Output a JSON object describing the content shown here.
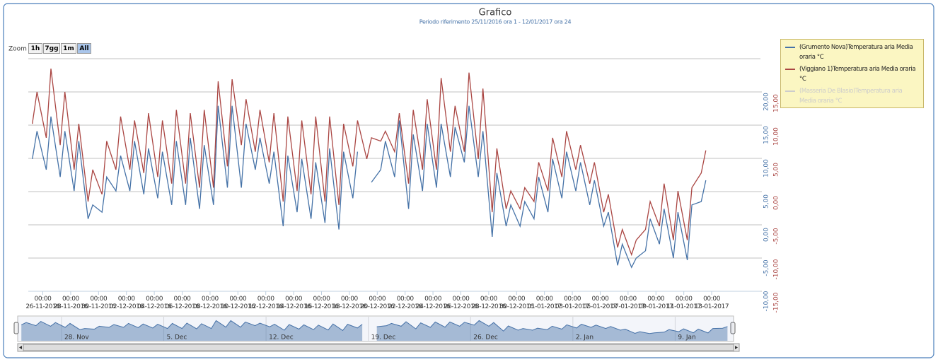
{
  "chart_data": {
    "type": "line",
    "title": "Grafico",
    "subtitle": "Periodo riferimento 25/11/2016 ora 1 - 12/01/2017 ora 24",
    "zoom": {
      "label": "Zoom",
      "buttons": [
        "1h",
        "7gg",
        "1m",
        "All"
      ],
      "selected": 3
    },
    "x": [
      "2016-11-25 06:00",
      "2016-11-25 14:00",
      "2016-11-26 06:00",
      "2016-11-26 14:00",
      "2016-11-27 06:00",
      "2016-11-27 14:00",
      "2016-11-28 06:00",
      "2016-11-28 14:00",
      "2016-11-29 06:00",
      "2016-11-29 14:00",
      "2016-11-30 06:00",
      "2016-11-30 14:00",
      "2016-12-01 06:00",
      "2016-12-01 14:00",
      "2016-12-02 06:00",
      "2016-12-02 14:00",
      "2016-12-03 06:00",
      "2016-12-03 14:00",
      "2016-12-04 06:00",
      "2016-12-04 14:00",
      "2016-12-05 06:00",
      "2016-12-05 14:00",
      "2016-12-06 06:00",
      "2016-12-06 14:00",
      "2016-12-07 06:00",
      "2016-12-07 14:00",
      "2016-12-08 06:00",
      "2016-12-08 14:00",
      "2016-12-09 06:00",
      "2016-12-09 14:00",
      "2016-12-10 06:00",
      "2016-12-10 14:00",
      "2016-12-11 06:00",
      "2016-12-11 14:00",
      "2016-12-12 06:00",
      "2016-12-12 14:00",
      "2016-12-13 06:00",
      "2016-12-13 14:00",
      "2016-12-14 06:00",
      "2016-12-14 14:00",
      "2016-12-15 06:00",
      "2016-12-15 14:00",
      "2016-12-16 06:00",
      "2016-12-16 14:00",
      "2016-12-17 06:00",
      "2016-12-17 14:00",
      "2016-12-18 06:00",
      "2016-12-18 14:00",
      "2016-12-19 06:00",
      "2016-12-19 14:00",
      "2016-12-20 06:00",
      "2016-12-20 14:00",
      "2016-12-21 06:00",
      "2016-12-21 14:00",
      "2016-12-22 06:00",
      "2016-12-22 14:00",
      "2016-12-23 06:00",
      "2016-12-23 14:00",
      "2016-12-24 06:00",
      "2016-12-24 14:00",
      "2016-12-25 06:00",
      "2016-12-25 14:00",
      "2016-12-26 06:00",
      "2016-12-26 14:00",
      "2016-12-27 06:00",
      "2016-12-27 14:00",
      "2016-12-28 06:00",
      "2016-12-28 14:00",
      "2016-12-29 06:00",
      "2016-12-29 14:00",
      "2016-12-30 06:00",
      "2016-12-30 14:00",
      "2016-12-31 06:00",
      "2016-12-31 14:00",
      "2017-01-01 06:00",
      "2017-01-01 14:00",
      "2017-01-02 06:00",
      "2017-01-02 14:00",
      "2017-01-03 06:00",
      "2017-01-03 14:00",
      "2017-01-04 06:00",
      "2017-01-04 14:00",
      "2017-01-05 06:00",
      "2017-01-05 14:00",
      "2017-01-06 06:00",
      "2017-01-06 14:00",
      "2017-01-07 06:00",
      "2017-01-07 14:00",
      "2017-01-08 06:00",
      "2017-01-08 14:00",
      "2017-01-09 06:00",
      "2017-01-09 14:00",
      "2017-01-10 06:00",
      "2017-01-10 14:00",
      "2017-01-11 06:00",
      "2017-01-11 14:00",
      "2017-01-12 06:00",
      "2017-01-12 14:00"
    ],
    "series": [
      {
        "name": "(Grumento Nova)Temperatura aria Media oraria °C",
        "color": "#4572a7",
        "axis": "y",
        "values": [
          9.9,
          14.1,
          8.3,
          16.3,
          7.2,
          14.1,
          5.1,
          12.6,
          0.9,
          3.0,
          1.9,
          7.2,
          5.1,
          10.4,
          5.1,
          12.6,
          4.6,
          11.5,
          4.0,
          11.0,
          3.0,
          12.6,
          3.0,
          13.1,
          2.4,
          12.0,
          3.0,
          17.9,
          5.6,
          17.9,
          5.6,
          15.2,
          8.3,
          13.1,
          6.2,
          11.0,
          -0.2,
          10.4,
          1.9,
          9.9,
          0.9,
          9.4,
          0.3,
          11.5,
          -0.7,
          11.0,
          4.0,
          11.0,
          null,
          6.4,
          8.3,
          12.6,
          7.2,
          15.7,
          2.4,
          13.6,
          5.1,
          15.2,
          5.6,
          15.2,
          7.2,
          14.7,
          9.4,
          17.9,
          7.2,
          14.1,
          -1.8,
          7.8,
          -0.2,
          3.0,
          -0.2,
          3.5,
          0.9,
          7.2,
          1.9,
          9.9,
          4.0,
          11.0,
          5.1,
          9.4,
          3.0,
          6.7,
          -0.2,
          1.9,
          -6.1,
          -2.9,
          -6.4,
          -5.0,
          -3.9,
          0.9,
          -2.9,
          2.4,
          -5.0,
          1.9,
          -5.3,
          3.0,
          3.5,
          6.7
        ]
      },
      {
        "name": "(Viggiano 1)Temperatura aria Media oraria °C",
        "color": "#aa4643",
        "axis": "y2",
        "values": [
          10.2,
          15.0,
          8.1,
          18.5,
          7.0,
          15.0,
          3.3,
          10.2,
          -1.5,
          3.3,
          -0.4,
          7.6,
          3.3,
          11.3,
          3.3,
          10.7,
          2.8,
          11.8,
          2.2,
          10.7,
          1.2,
          12.3,
          1.2,
          11.8,
          0.6,
          12.3,
          0.6,
          16.6,
          3.8,
          16.9,
          7.0,
          13.9,
          6.0,
          12.3,
          4.4,
          11.8,
          -1.5,
          11.3,
          0.1,
          10.7,
          -0.4,
          11.3,
          -1.5,
          11.3,
          -2.0,
          10.2,
          3.8,
          10.7,
          4.9,
          8.1,
          7.6,
          9.1,
          6.0,
          11.8,
          1.2,
          12.3,
          3.3,
          13.9,
          3.3,
          17.1,
          6.0,
          12.9,
          6.0,
          17.9,
          4.9,
          15.5,
          -3.1,
          6.5,
          -2.6,
          0.1,
          -2.6,
          0.6,
          -1.5,
          4.4,
          0.1,
          8.1,
          2.2,
          9.1,
          3.3,
          7.0,
          1.2,
          4.4,
          -3.1,
          -0.4,
          -8.4,
          -5.7,
          -9.5,
          -7.3,
          -5.7,
          -1.5,
          -5.2,
          1.2,
          -7.3,
          0.1,
          -7.3,
          0.6,
          2.8,
          6.2
        ]
      },
      {
        "name": "(Masseria De Blasio)Temperatura aria Media oraria °C",
        "color": "#cccccc",
        "visible": false
      }
    ],
    "xlim": [
      "2016-11-24 23:00",
      "2017-01-16 12:00"
    ],
    "xticks": [
      {
        "value": "2016-11-26 00:00",
        "label": "00:00\n26-11-2016"
      },
      {
        "value": "2016-11-28 00:00",
        "label": "00:00\n28-11-2016"
      },
      {
        "value": "2016-11-30 00:00",
        "label": "00:00\n30-11-2016"
      },
      {
        "value": "2016-12-02 00:00",
        "label": "00:00\n02-12-2016"
      },
      {
        "value": "2016-12-04 00:00",
        "label": "00:00\n04-12-2016"
      },
      {
        "value": "2016-12-06 00:00",
        "label": "00:00\n06-12-2016"
      },
      {
        "value": "2016-12-08 00:00",
        "label": "00:00\n08-12-2016"
      },
      {
        "value": "2016-12-10 00:00",
        "label": "00:00\n10-12-2016"
      },
      {
        "value": "2016-12-12 00:00",
        "label": "00:00\n12-12-2016"
      },
      {
        "value": "2016-12-14 00:00",
        "label": "00:00\n14-12-2016"
      },
      {
        "value": "2016-12-16 00:00",
        "label": "00:00\n16-12-2016"
      },
      {
        "value": "2016-12-18 00:00",
        "label": "00:00\n18-12-2016"
      },
      {
        "value": "2016-12-20 00:00",
        "label": "00:00\n20-12-2016"
      },
      {
        "value": "2016-12-22 00:00",
        "label": "00:00\n22-12-2016"
      },
      {
        "value": "2016-12-24 00:00",
        "label": "00:00\n24-12-2016"
      },
      {
        "value": "2016-12-26 00:00",
        "label": "00:00\n26-12-2016"
      },
      {
        "value": "2016-12-28 00:00",
        "label": "00:00\n28-12-2016"
      },
      {
        "value": "2016-12-30 00:00",
        "label": "00:00\n30-12-2016"
      },
      {
        "value": "2017-01-01 00:00",
        "label": "00:00\n01-01-2017"
      },
      {
        "value": "2017-01-03 00:00",
        "label": "00:00\n03-01-2017"
      },
      {
        "value": "2017-01-05 00:00",
        "label": "00:00\n05-01-2017"
      },
      {
        "value": "2017-01-07 00:00",
        "label": "00:00\n07-01-2017"
      },
      {
        "value": "2017-01-09 00:00",
        "label": "00:00\n09-01-2017"
      },
      {
        "value": "2017-01-11 00:00",
        "label": "00:00\n11-01-2017"
      },
      {
        "value": "2017-01-13 00:00",
        "label": "00:00\n13-01-2017"
      }
    ],
    "ylim": [
      -10,
      25
    ],
    "yticks": [
      {
        "value": -10,
        "label": "-10,00"
      },
      {
        "value": -5,
        "label": "-5,00"
      },
      {
        "value": 0,
        "label": "0,00"
      },
      {
        "value": 5,
        "label": "5,00"
      },
      {
        "value": 10,
        "label": "10,00"
      },
      {
        "value": 15,
        "label": "15,00"
      },
      {
        "value": 20,
        "label": "20,00"
      }
    ],
    "y2lim": [
      -15,
      20
    ],
    "y2ticks": [
      {
        "value": -15,
        "label": "-15,00"
      },
      {
        "value": -10,
        "label": "-10,00"
      },
      {
        "value": -5,
        "label": "-5,00"
      },
      {
        "value": 0,
        "label": "0,00"
      },
      {
        "value": 5,
        "label": "5,00"
      },
      {
        "value": 10,
        "label": "10,00"
      },
      {
        "value": 15,
        "label": "15,00"
      }
    ],
    "grid": true,
    "legend": "right",
    "navigator": {
      "xlim": [
        "2016-11-25 00:00",
        "2017-01-13 00:00"
      ],
      "ylim": [
        -20,
        25
      ],
      "xticks": [
        {
          "value": "2016-11-28 00:00",
          "label": "28. Nov"
        },
        {
          "value": "2016-12-05 00:00",
          "label": "5. Dec"
        },
        {
          "value": "2016-12-12 00:00",
          "label": "12. Dec"
        },
        {
          "value": "2016-12-19 00:00",
          "label": "19. Dec"
        },
        {
          "value": "2016-12-26 00:00",
          "label": "26. Dec"
        },
        {
          "value": "2017-01-02 00:00",
          "label": "2. Jan"
        },
        {
          "value": "2017-01-09 00:00",
          "label": "9. Jan"
        }
      ]
    }
  }
}
